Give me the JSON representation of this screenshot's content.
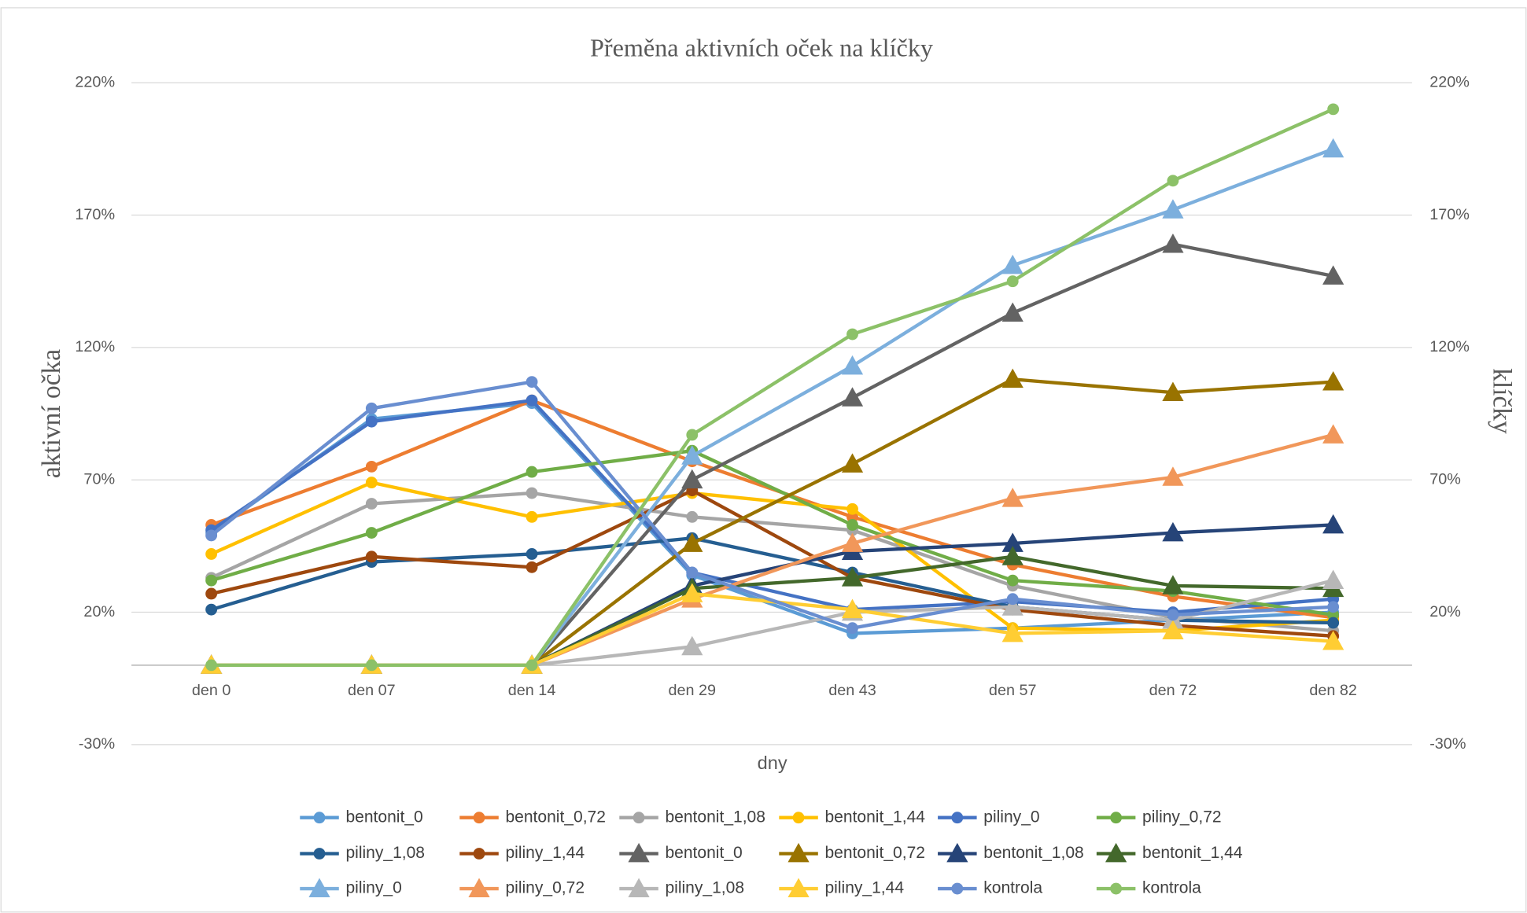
{
  "chart_data": {
    "type": "line",
    "title": "Přeměna aktivních oček na klíčky",
    "x_label": "dny",
    "y_label": "aktivní očka",
    "y2_label": "klíčky",
    "categories": [
      "den 0",
      "den 07",
      "den 14",
      "den 29",
      "den 43",
      "den 57",
      "den 72",
      "den 82"
    ],
    "ylim": [
      -30,
      220
    ],
    "yticks": [
      {
        "value": -30,
        "label": "-30%"
      },
      {
        "value": 20,
        "label": "20%"
      },
      {
        "value": 70,
        "label": "70%"
      },
      {
        "value": 120,
        "label": "120%"
      },
      {
        "value": 170,
        "label": "170%"
      },
      {
        "value": 220,
        "label": "220%"
      }
    ],
    "y2lim": [
      -30,
      220
    ],
    "y2ticks": [
      {
        "value": -30,
        "label": "-30%"
      },
      {
        "value": 20,
        "label": "20%"
      },
      {
        "value": 70,
        "label": "70%"
      },
      {
        "value": 120,
        "label": "120%"
      },
      {
        "value": 170,
        "label": "170%"
      },
      {
        "value": 220,
        "label": "220%"
      }
    ],
    "grid": true,
    "legend": "bottom",
    "series": [
      {
        "name": "bentonit_0",
        "color": "#5B9BD5",
        "marker": "circle",
        "values": [
          50,
          93,
          99,
          34,
          12,
          14,
          17,
          20
        ]
      },
      {
        "name": "bentonit_0,72",
        "color": "#ED7D31",
        "marker": "circle",
        "values": [
          53,
          75,
          100,
          77,
          56,
          38,
          26,
          18
        ]
      },
      {
        "name": "bentonit_1,08",
        "color": "#A5A5A5",
        "marker": "circle",
        "values": [
          33,
          61,
          65,
          56,
          51,
          30,
          18,
          13
        ]
      },
      {
        "name": "bentonit_1,44",
        "color": "#FFC000",
        "marker": "circle",
        "values": [
          42,
          69,
          56,
          65,
          59,
          14,
          13,
          17
        ]
      },
      {
        "name": "piliny_0",
        "color": "#4472C4",
        "marker": "circle",
        "values": [
          51,
          92,
          100,
          35,
          21,
          24,
          20,
          25
        ]
      },
      {
        "name": "piliny_0,72",
        "color": "#70AD47",
        "marker": "circle",
        "values": [
          32,
          50,
          73,
          81,
          53,
          32,
          28,
          19
        ]
      },
      {
        "name": "piliny_1,08",
        "color": "#255E91",
        "marker": "circle",
        "values": [
          21,
          39,
          42,
          48,
          35,
          22,
          17,
          16
        ]
      },
      {
        "name": "piliny_1,44",
        "color": "#9E480E",
        "marker": "circle",
        "values": [
          27,
          41,
          37,
          66,
          33,
          21,
          15,
          11
        ]
      },
      {
        "name": "bentonit_0",
        "color": "#636363",
        "marker": "triangle",
        "axis": "y2",
        "values": [
          0,
          0,
          0,
          70,
          101,
          133,
          159,
          147
        ]
      },
      {
        "name": "bentonit_0,72",
        "color": "#997300",
        "marker": "triangle",
        "axis": "y2",
        "values": [
          0,
          0,
          0,
          46,
          76,
          108,
          103,
          107
        ]
      },
      {
        "name": "bentonit_1,08",
        "color": "#264478",
        "marker": "triangle",
        "axis": "y2",
        "values": [
          0,
          0,
          0,
          30,
          43,
          46,
          50,
          53
        ]
      },
      {
        "name": "bentonit_1,44",
        "color": "#43682B",
        "marker": "triangle",
        "axis": "y2",
        "values": [
          0,
          0,
          0,
          29,
          33,
          41,
          30,
          29
        ]
      },
      {
        "name": "piliny_0",
        "color": "#7CAFDD",
        "marker": "triangle",
        "axis": "y2",
        "values": [
          0,
          0,
          0,
          79,
          113,
          151,
          172,
          195
        ]
      },
      {
        "name": "piliny_0,72",
        "color": "#F1975A",
        "marker": "triangle",
        "axis": "y2",
        "values": [
          0,
          0,
          0,
          25,
          46,
          63,
          71,
          87
        ]
      },
      {
        "name": "piliny_1,08",
        "color": "#B7B7B7",
        "marker": "triangle",
        "axis": "y2",
        "values": [
          0,
          0,
          0,
          7,
          20,
          22,
          17,
          32
        ]
      },
      {
        "name": "piliny_1,44",
        "color": "#FFCD33",
        "marker": "triangle",
        "axis": "y2",
        "values": [
          0,
          0,
          0,
          27,
          21,
          12,
          13,
          9
        ]
      },
      {
        "name": "kontrola",
        "color": "#698ED0",
        "marker": "circle",
        "values": [
          49,
          97,
          107,
          35,
          14,
          25,
          19,
          22
        ]
      },
      {
        "name": "kontrola",
        "color": "#8CC168",
        "marker": "circle",
        "axis": "y2",
        "values": [
          0,
          0,
          0,
          87,
          125,
          145,
          183,
          210
        ]
      }
    ]
  }
}
